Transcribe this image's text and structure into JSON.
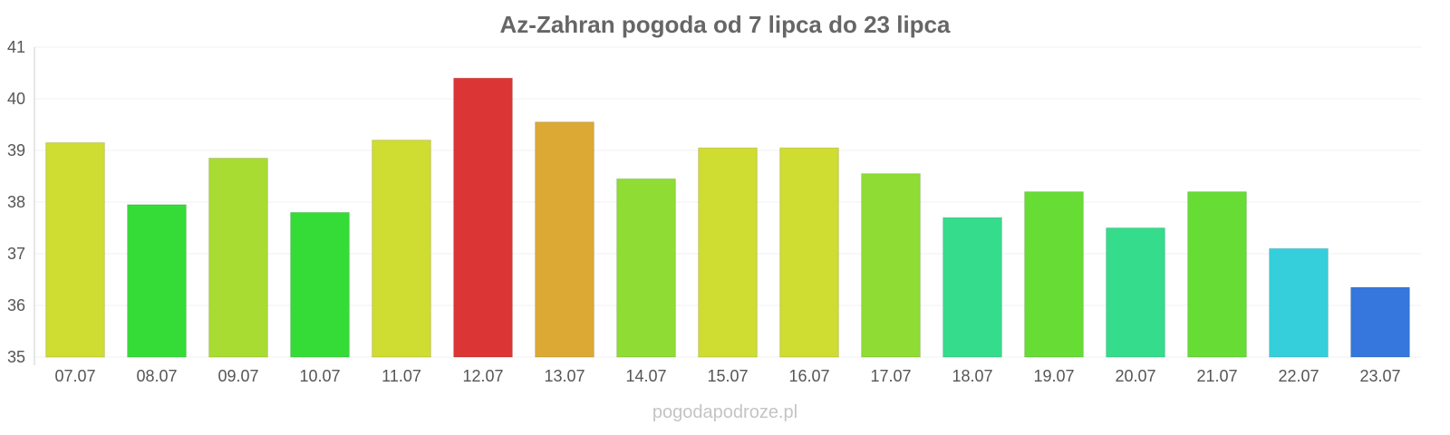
{
  "chart_data": {
    "type": "bar",
    "title": "Az-Zahran pogoda od 7 lipca do 23 lipca",
    "xlabel": "",
    "ylabel": "",
    "ylim": [
      35,
      41
    ],
    "yticks": [
      "35",
      "36",
      "37",
      "38",
      "39",
      "40",
      "41"
    ],
    "grid": true,
    "legend": "none",
    "categories": [
      "07.07",
      "08.07",
      "09.07",
      "10.07",
      "11.07",
      "12.07",
      "13.07",
      "14.07",
      "15.07",
      "16.07",
      "17.07",
      "18.07",
      "19.07",
      "20.07",
      "21.07",
      "22.07",
      "23.07"
    ],
    "values": [
      39.15,
      37.95,
      38.85,
      37.8,
      39.2,
      40.4,
      39.55,
      38.45,
      39.05,
      39.05,
      38.55,
      37.7,
      38.2,
      37.5,
      38.2,
      37.1,
      36.35
    ],
    "colors": [
      "#cfdc32",
      "#35dc38",
      "#a9dc33",
      "#35dc38",
      "#cfdc32",
      "#dc3535",
      "#dca935",
      "#8fdc35",
      "#cfdc32",
      "#cfdc32",
      "#8fdc35",
      "#35dc8c",
      "#67dc35",
      "#35dc8c",
      "#67dc35",
      "#35cfdc",
      "#3577dc"
    ]
  },
  "footer": {
    "watermark": "pogodapodroze.pl"
  }
}
